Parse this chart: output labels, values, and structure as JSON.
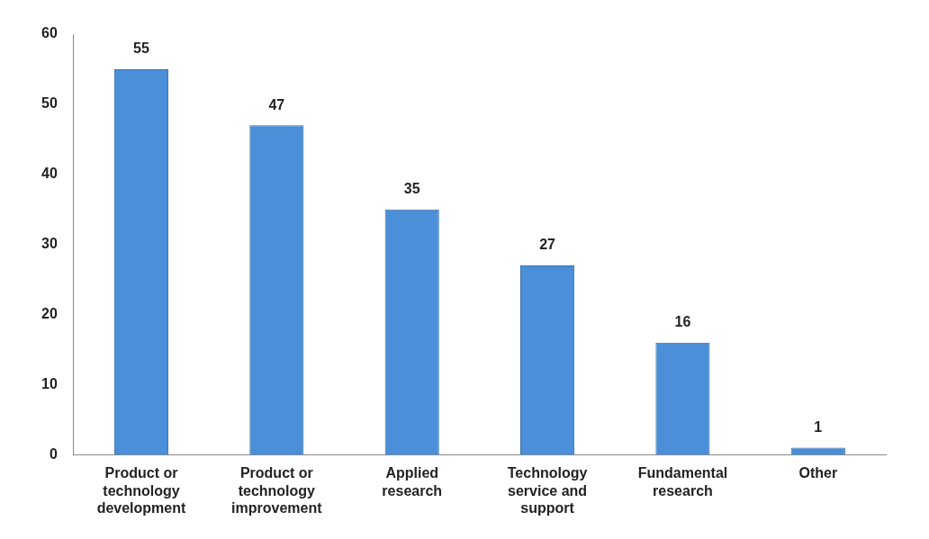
{
  "chart_data": {
    "type": "bar",
    "categories": [
      "Product or technology development",
      "Product or technology improvement",
      "Applied research",
      "Technology service and support",
      "Fundamental research",
      "Other"
    ],
    "values": [
      55,
      47,
      35,
      27,
      16,
      1
    ],
    "color": "#4a8fd8",
    "ylim": [
      0,
      60
    ],
    "yticks": [
      0,
      10,
      20,
      30,
      40,
      50,
      60
    ],
    "grid": false,
    "legend": false,
    "data_labels": true
  }
}
